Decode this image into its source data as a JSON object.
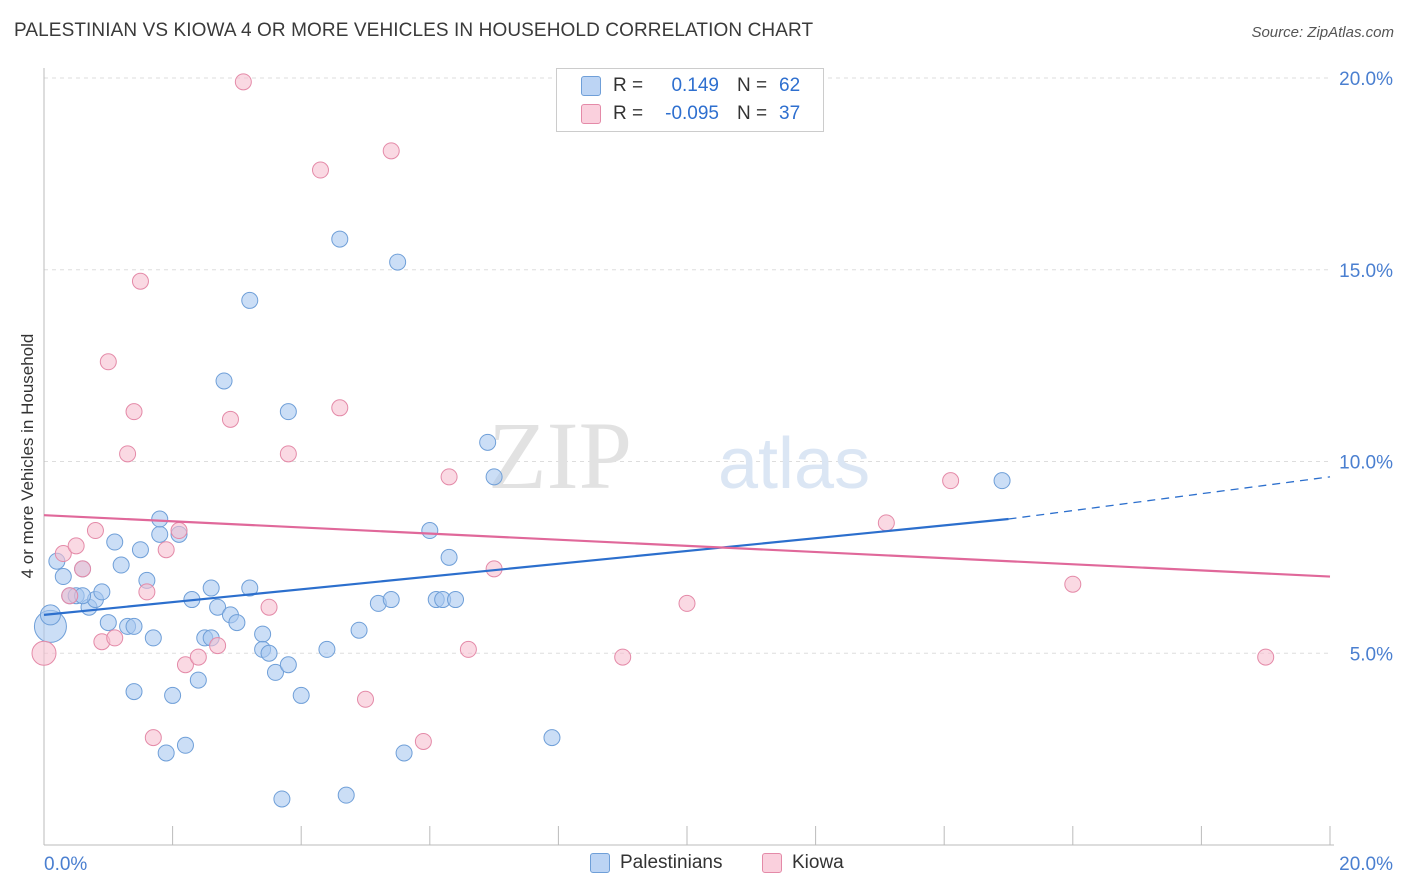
{
  "title": "PALESTINIAN VS KIOWA 4 OR MORE VEHICLES IN HOUSEHOLD CORRELATION CHART",
  "source": "Source: ZipAtlas.com",
  "watermark": {
    "zip": "ZIP",
    "atlas": "atlas"
  },
  "colors": {
    "blue_fill": "#a9c8f0",
    "blue_stroke": "#6f9fd8",
    "blue_line": "#2c6fcd",
    "pink_fill": "#f6bfd0",
    "pink_stroke": "#e48aa8",
    "pink_line": "#e0689a",
    "tick_text": "#4a7fd0",
    "grid": "#dddddd"
  },
  "legend": {
    "rows": [
      {
        "r_label": "R =",
        "r_value": "0.149",
        "n_label": "N =",
        "n_value": "62"
      },
      {
        "r_label": "R =",
        "r_value": "-0.095",
        "n_label": "N =",
        "n_value": "37"
      }
    ]
  },
  "bottom_legend": [
    "Palestinians",
    "Kiowa"
  ],
  "chart_data": {
    "type": "scatter",
    "title": "PALESTINIAN VS KIOWA 4 OR MORE VEHICLES IN HOUSEHOLD CORRELATION CHART",
    "xlabel": "",
    "ylabel": "4 or more Vehicles in Household",
    "xlim": [
      0,
      20
    ],
    "ylim": [
      0,
      20
    ],
    "x_tick_labels": [
      "0.0%",
      "20.0%"
    ],
    "y_ticks": [
      5,
      10,
      15,
      20
    ],
    "y_tick_labels": [
      "5.0%",
      "10.0%",
      "15.0%",
      "20.0%"
    ],
    "grid": true,
    "legend_placement": "top-center",
    "series": [
      {
        "name": "Palestinians",
        "r": 0.149,
        "n": 62,
        "trend": {
          "x": [
            0,
            15
          ],
          "y": [
            6.0,
            8.5
          ],
          "dashed_to": [
            20,
            9.6
          ]
        },
        "points": [
          [
            0.1,
            5.7,
            16
          ],
          [
            0.1,
            6.0,
            10
          ],
          [
            0.2,
            7.4,
            8
          ],
          [
            0.3,
            7.0,
            8
          ],
          [
            0.4,
            6.5,
            8
          ],
          [
            0.5,
            6.5,
            8
          ],
          [
            0.6,
            7.2,
            8
          ],
          [
            0.7,
            6.2,
            8
          ],
          [
            0.8,
            6.4,
            8
          ],
          [
            0.9,
            6.6,
            8
          ],
          [
            1.0,
            5.8,
            8
          ],
          [
            1.1,
            7.9,
            8
          ],
          [
            1.2,
            7.3,
            8
          ],
          [
            1.3,
            5.7,
            8
          ],
          [
            1.4,
            5.7,
            8
          ],
          [
            1.4,
            4.0,
            8
          ],
          [
            1.5,
            7.7,
            8
          ],
          [
            1.6,
            6.9,
            8
          ],
          [
            1.7,
            5.4,
            8
          ],
          [
            1.8,
            8.1,
            8
          ],
          [
            1.8,
            8.5,
            8
          ],
          [
            1.9,
            2.4,
            8
          ],
          [
            2.0,
            3.9,
            8
          ],
          [
            2.1,
            8.1,
            8
          ],
          [
            2.2,
            2.6,
            8
          ],
          [
            2.3,
            6.4,
            8
          ],
          [
            2.4,
            4.3,
            8
          ],
          [
            2.5,
            5.4,
            8
          ],
          [
            2.6,
            6.7,
            8
          ],
          [
            2.6,
            5.4,
            8
          ],
          [
            2.7,
            6.2,
            8
          ],
          [
            2.8,
            12.1,
            8
          ],
          [
            2.9,
            6.0,
            8
          ],
          [
            3.0,
            5.8,
            8
          ],
          [
            3.2,
            14.2,
            8
          ],
          [
            3.2,
            6.7,
            8
          ],
          [
            3.4,
            5.5,
            8
          ],
          [
            3.4,
            5.1,
            8
          ],
          [
            3.5,
            5.0,
            8
          ],
          [
            3.6,
            4.5,
            8
          ],
          [
            3.7,
            1.2,
            8
          ],
          [
            3.8,
            4.7,
            8
          ],
          [
            3.8,
            11.3,
            8
          ],
          [
            4.0,
            3.9,
            8
          ],
          [
            4.4,
            5.1,
            8
          ],
          [
            4.6,
            15.8,
            8
          ],
          [
            4.7,
            1.3,
            8
          ],
          [
            4.9,
            5.6,
            8
          ],
          [
            5.2,
            6.3,
            8
          ],
          [
            5.4,
            6.4,
            8
          ],
          [
            5.5,
            15.2,
            8
          ],
          [
            5.6,
            2.4,
            8
          ],
          [
            6.0,
            8.2,
            8
          ],
          [
            6.1,
            6.4,
            8
          ],
          [
            6.2,
            6.4,
            8
          ],
          [
            6.3,
            7.5,
            8
          ],
          [
            6.4,
            6.4,
            8
          ],
          [
            6.9,
            10.5,
            8
          ],
          [
            7.0,
            9.6,
            8
          ],
          [
            7.9,
            2.8,
            8
          ],
          [
            14.9,
            9.5,
            8
          ],
          [
            0.6,
            6.5,
            8
          ]
        ]
      },
      {
        "name": "Kiowa",
        "r": -0.095,
        "n": 37,
        "trend": {
          "x": [
            0,
            20
          ],
          "y": [
            8.6,
            7.0
          ]
        },
        "points": [
          [
            0.0,
            5.0,
            12
          ],
          [
            0.3,
            7.6,
            8
          ],
          [
            0.4,
            6.5,
            8
          ],
          [
            0.5,
            7.8,
            8
          ],
          [
            0.6,
            7.2,
            8
          ],
          [
            0.8,
            8.2,
            8
          ],
          [
            0.9,
            5.3,
            8
          ],
          [
            1.0,
            12.6,
            8
          ],
          [
            1.1,
            5.4,
            8
          ],
          [
            1.3,
            10.2,
            8
          ],
          [
            1.4,
            11.3,
            8
          ],
          [
            1.5,
            14.7,
            8
          ],
          [
            1.6,
            6.6,
            8
          ],
          [
            1.7,
            2.8,
            8
          ],
          [
            1.9,
            7.7,
            8
          ],
          [
            2.1,
            8.2,
            8
          ],
          [
            2.2,
            4.7,
            8
          ],
          [
            2.4,
            4.9,
            8
          ],
          [
            2.7,
            5.2,
            8
          ],
          [
            2.9,
            11.1,
            8
          ],
          [
            3.1,
            19.9,
            8
          ],
          [
            3.5,
            6.2,
            8
          ],
          [
            3.8,
            10.2,
            8
          ],
          [
            4.3,
            17.6,
            8
          ],
          [
            4.6,
            11.4,
            8
          ],
          [
            5.0,
            3.8,
            8
          ],
          [
            5.4,
            18.1,
            8
          ],
          [
            5.9,
            2.7,
            8
          ],
          [
            6.3,
            9.6,
            8
          ],
          [
            6.6,
            5.1,
            8
          ],
          [
            7.0,
            7.2,
            8
          ],
          [
            9.0,
            4.9,
            8
          ],
          [
            10.0,
            6.3,
            8
          ],
          [
            13.1,
            8.4,
            8
          ],
          [
            14.1,
            9.5,
            8
          ],
          [
            16.0,
            6.8,
            8
          ],
          [
            19.0,
            4.9,
            8
          ]
        ]
      }
    ]
  }
}
